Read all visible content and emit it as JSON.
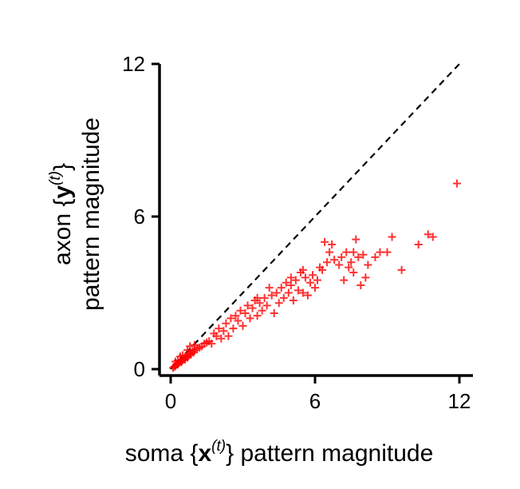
{
  "chart_data": {
    "type": "scatter",
    "xlabel": {
      "prefix": "soma ",
      "brace_open": "{",
      "var": "x",
      "sup": "(t)",
      "brace_close": "}",
      "suffix": " pattern magnitude"
    },
    "ylabel": {
      "line1_prefix": "axon ",
      "brace_open": "{",
      "var": "y",
      "sup": "(t)",
      "brace_close": "}",
      "line2": "pattern magnitude"
    },
    "xlim": [
      0,
      12.5
    ],
    "ylim": [
      -0.3,
      12
    ],
    "xticks": [
      0,
      6,
      12
    ],
    "yticks": [
      0,
      6,
      12
    ],
    "xtick_labels": [
      "0",
      "6",
      "12"
    ],
    "ytick_labels": [
      "0",
      "6",
      "12"
    ],
    "reference_line": {
      "x": [
        0,
        12
      ],
      "y": [
        0,
        12
      ],
      "style": "dashed",
      "color": "#000000"
    },
    "marker": "+",
    "marker_color": "#ff0000",
    "series": [
      {
        "points": [
          [
            0.1,
            0.05
          ],
          [
            0.15,
            0.1
          ],
          [
            0.2,
            0.12
          ],
          [
            0.25,
            0.2
          ],
          [
            0.3,
            0.18
          ],
          [
            0.35,
            0.25
          ],
          [
            0.4,
            0.3
          ],
          [
            0.45,
            0.28
          ],
          [
            0.5,
            0.35
          ],
          [
            0.55,
            0.4
          ],
          [
            0.6,
            0.38
          ],
          [
            0.65,
            0.5
          ],
          [
            0.7,
            0.45
          ],
          [
            0.75,
            0.55
          ],
          [
            0.8,
            0.6
          ],
          [
            0.85,
            0.58
          ],
          [
            0.9,
            0.7
          ],
          [
            0.95,
            0.65
          ],
          [
            1.0,
            0.75
          ],
          [
            1.1,
            0.8
          ],
          [
            1.2,
            0.85
          ],
          [
            1.3,
            0.9
          ],
          [
            1.4,
            1.0
          ],
          [
            1.5,
            1.05
          ],
          [
            0.2,
            0.3
          ],
          [
            0.3,
            0.35
          ],
          [
            0.5,
            0.55
          ],
          [
            0.6,
            0.5
          ],
          [
            0.8,
            0.9
          ],
          [
            1.0,
            0.95
          ],
          [
            0.4,
            0.5
          ],
          [
            0.7,
            0.75
          ],
          [
            1.6,
            1.1
          ],
          [
            1.7,
            1.0
          ],
          [
            1.9,
            1.3
          ],
          [
            2.1,
            1.2
          ],
          [
            2.2,
            1.5
          ],
          [
            2.3,
            1.8
          ],
          [
            2.4,
            1.3
          ],
          [
            2.5,
            2.0
          ],
          [
            2.6,
            1.6
          ],
          [
            2.7,
            2.1
          ],
          [
            2.8,
            1.9
          ],
          [
            2.9,
            2.3
          ],
          [
            3.0,
            1.7
          ],
          [
            3.1,
            2.2
          ],
          [
            3.2,
            2.5
          ],
          [
            3.3,
            2.0
          ],
          [
            3.4,
            2.4
          ],
          [
            3.5,
            2.7
          ],
          [
            3.6,
            2.1
          ],
          [
            3.7,
            2.6
          ],
          [
            3.8,
            2.3
          ],
          [
            3.9,
            2.8
          ],
          [
            4.0,
            2.5
          ],
          [
            4.2,
            2.9
          ],
          [
            4.3,
            2.2
          ],
          [
            4.4,
            3.0
          ],
          [
            4.5,
            2.6
          ],
          [
            4.6,
            3.2
          ],
          [
            4.7,
            2.8
          ],
          [
            4.8,
            3.4
          ],
          [
            4.9,
            3.0
          ],
          [
            5.0,
            3.3
          ],
          [
            5.1,
            2.7
          ],
          [
            5.2,
            3.5
          ],
          [
            5.3,
            3.1
          ],
          [
            5.4,
            3.8
          ],
          [
            5.5,
            3.0
          ],
          [
            5.6,
            3.6
          ],
          [
            5.7,
            2.9
          ],
          [
            5.8,
            3.4
          ],
          [
            5.9,
            3.7
          ],
          [
            6.0,
            3.2
          ],
          [
            6.1,
            3.5
          ],
          [
            6.2,
            4.0
          ],
          [
            6.3,
            3.9
          ],
          [
            6.4,
            5.0
          ],
          [
            6.5,
            4.2
          ],
          [
            6.6,
            4.6
          ],
          [
            6.8,
            4.3
          ],
          [
            7.0,
            4.1
          ],
          [
            7.1,
            4.4
          ],
          [
            7.2,
            3.5
          ],
          [
            7.3,
            4.6
          ],
          [
            7.4,
            4.0
          ],
          [
            7.5,
            4.2
          ],
          [
            7.6,
            3.8
          ],
          [
            7.7,
            5.1
          ],
          [
            7.8,
            4.4
          ],
          [
            7.9,
            3.3
          ],
          [
            8.0,
            4.5
          ],
          [
            8.1,
            3.6
          ],
          [
            8.2,
            4.1
          ],
          [
            8.5,
            4.4
          ],
          [
            8.7,
            4.6
          ],
          [
            9.0,
            4.6
          ],
          [
            9.2,
            5.2
          ],
          [
            9.6,
            3.9
          ],
          [
            10.3,
            4.9
          ],
          [
            10.7,
            5.3
          ],
          [
            10.9,
            5.2
          ],
          [
            11.9,
            7.3
          ],
          [
            1.8,
            1.4
          ],
          [
            2.0,
            1.6
          ],
          [
            3.6,
            2.8
          ],
          [
            4.1,
            3.2
          ],
          [
            5.5,
            3.9
          ],
          [
            6.7,
            4.9
          ],
          [
            7.6,
            4.6
          ],
          [
            5.0,
            3.6
          ]
        ]
      }
    ]
  }
}
